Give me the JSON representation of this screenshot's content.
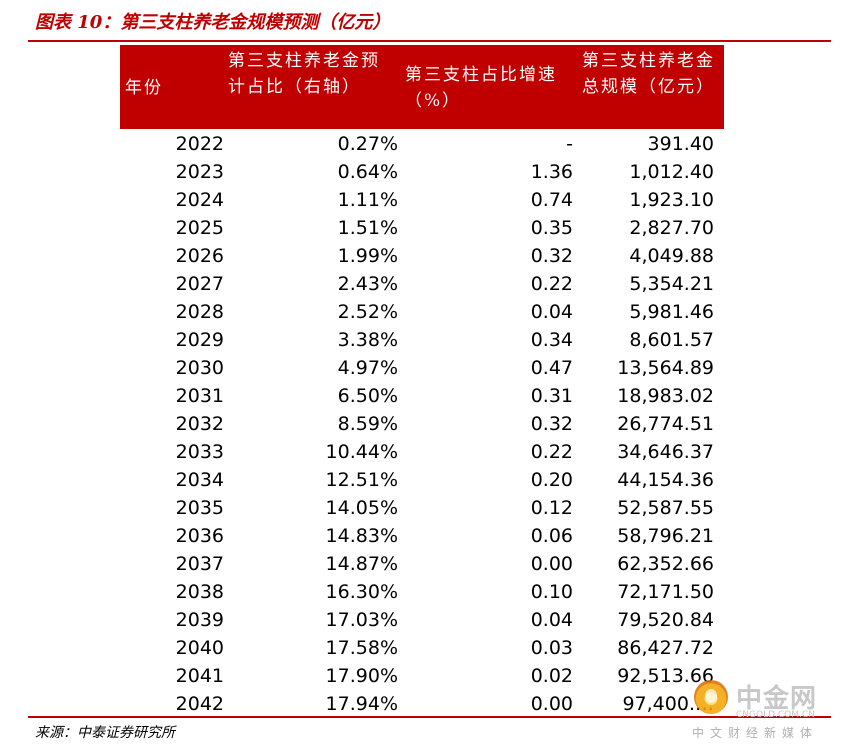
{
  "title": {
    "prefix": "图表 10：",
    "text": "第三支柱养老金规模预测（亿元）"
  },
  "table": {
    "headers": [
      "年份",
      "第三支柱养老金预计占比（右轴）",
      "第三支柱占比增速（%）",
      "第三支柱养老金总规模（亿元）"
    ],
    "rows": [
      {
        "year": "2022",
        "pct": "0.27%",
        "growth": "-",
        "total": "391.40"
      },
      {
        "year": "2023",
        "pct": "0.64%",
        "growth": "1.36",
        "total": "1,012.40"
      },
      {
        "year": "2024",
        "pct": "1.11%",
        "growth": "0.74",
        "total": "1,923.10"
      },
      {
        "year": "2025",
        "pct": "1.51%",
        "growth": "0.35",
        "total": "2,827.70"
      },
      {
        "year": "2026",
        "pct": "1.99%",
        "growth": "0.32",
        "total": "4,049.88"
      },
      {
        "year": "2027",
        "pct": "2.43%",
        "growth": "0.22",
        "total": "5,354.21"
      },
      {
        "year": "2028",
        "pct": "2.52%",
        "growth": "0.04",
        "total": "5,981.46"
      },
      {
        "year": "2029",
        "pct": "3.38%",
        "growth": "0.34",
        "total": "8,601.57"
      },
      {
        "year": "2030",
        "pct": "4.97%",
        "growth": "0.47",
        "total": "13,564.89"
      },
      {
        "year": "2031",
        "pct": "6.50%",
        "growth": "0.31",
        "total": "18,983.02"
      },
      {
        "year": "2032",
        "pct": "8.59%",
        "growth": "0.32",
        "total": "26,774.51"
      },
      {
        "year": "2033",
        "pct": "10.44%",
        "growth": "0.22",
        "total": "34,646.37"
      },
      {
        "year": "2034",
        "pct": "12.51%",
        "growth": "0.20",
        "total": "44,154.36"
      },
      {
        "year": "2035",
        "pct": "14.05%",
        "growth": "0.12",
        "total": "52,587.55"
      },
      {
        "year": "2036",
        "pct": "14.83%",
        "growth": "0.06",
        "total": "58,796.21"
      },
      {
        "year": "2037",
        "pct": "14.87%",
        "growth": "0.00",
        "total": "62,352.66"
      },
      {
        "year": "2038",
        "pct": "16.30%",
        "growth": "0.10",
        "total": "72,171.50"
      },
      {
        "year": "2039",
        "pct": "17.03%",
        "growth": "0.04",
        "total": "79,520.84"
      },
      {
        "year": "2040",
        "pct": "17.58%",
        "growth": "0.03",
        "total": "86,427.72"
      },
      {
        "year": "2041",
        "pct": "17.90%",
        "growth": "0.02",
        "total": "92,513.66"
      },
      {
        "year": "2042",
        "pct": "17.94%",
        "growth": "0.00",
        "total": "97,400.…"
      }
    ]
  },
  "source": "来源：中泰证券研究所",
  "watermark": {
    "name": "中金网",
    "url": "CNGOLD.COM.CN",
    "sub": "中文财经新媒体"
  },
  "colors": {
    "accent": "#c00000"
  }
}
